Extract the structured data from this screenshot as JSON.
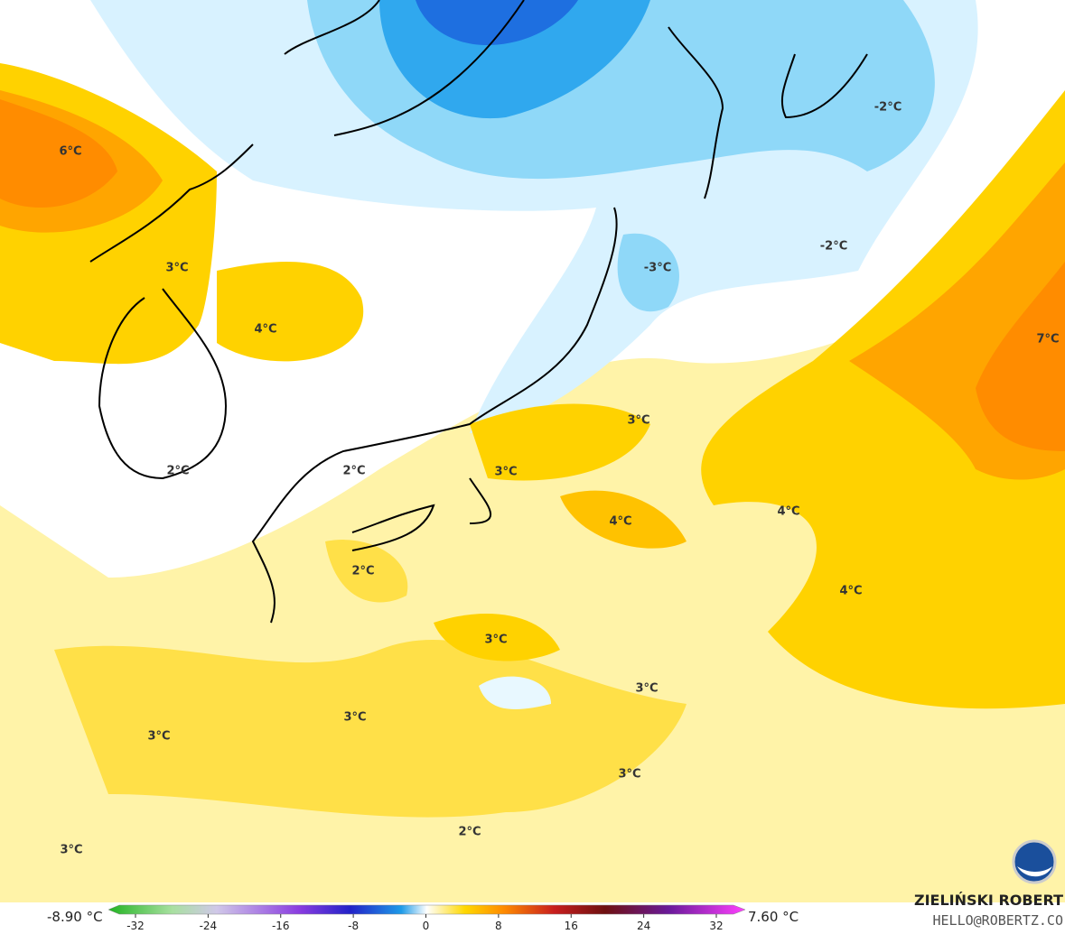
{
  "map": {
    "contour_labels": [
      "6°C",
      "3°C",
      "4°C",
      "2°C",
      "2°C",
      "-3°C",
      "-2°C",
      "-2°C",
      "7°C",
      "3°C",
      "3°C",
      "4°C",
      "4°C",
      "4°C",
      "2°C",
      "3°C",
      "3°C",
      "3°C",
      "3°C",
      "3°C",
      "2°C",
      "3°C"
    ]
  },
  "colorbar": {
    "min_label": "-8.90 °C",
    "max_label": "7.60 °C",
    "range": [
      -32,
      32
    ],
    "ticks": [
      -32,
      -24,
      -16,
      -8,
      0,
      8,
      16,
      24,
      32
    ]
  },
  "credits": {
    "author": "ZIELIŃSKI ROBERT",
    "email": "HELLO@ROBERTZ.CO"
  }
}
